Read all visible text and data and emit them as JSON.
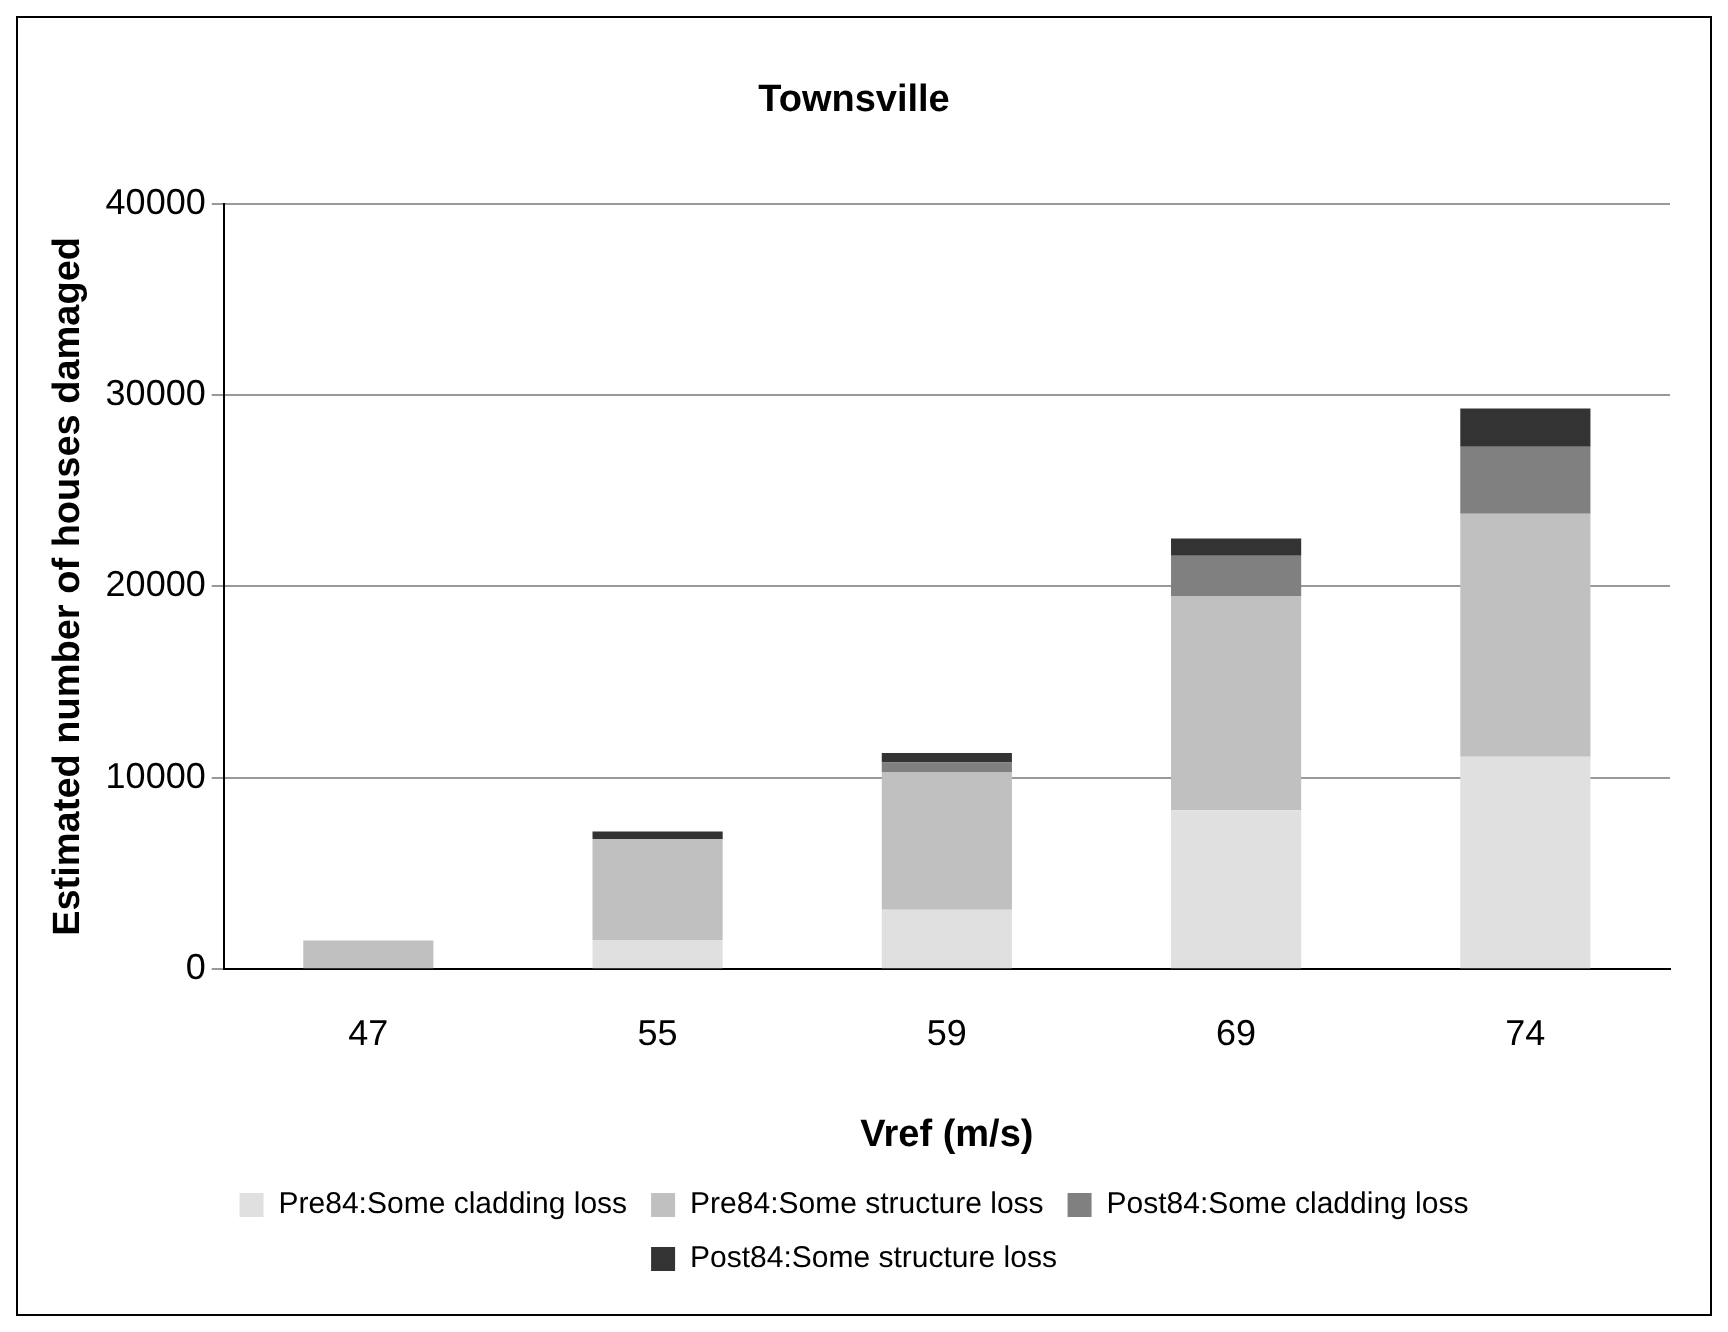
{
  "chart_data": {
    "type": "bar",
    "title": "Townsville",
    "xlabel": "Vref (m/s)",
    "ylabel": "Estimated number of houses damaged",
    "categories": [
      "47",
      "55",
      "59",
      "69",
      "74"
    ],
    "stacked": true,
    "series": [
      {
        "name": "Pre84:Some cladding loss",
        "color": "#e0e0e0",
        "values": [
          null,
          1500,
          3100,
          8300,
          11100
        ]
      },
      {
        "name": "Pre84:Some structure loss",
        "color": "#c0c0c0",
        "values": [
          1500,
          5300,
          7200,
          11200,
          12700
        ]
      },
      {
        "name": "Post84:Some cladding loss",
        "color": "#808080",
        "values": [
          0,
          0,
          500,
          2100,
          3500
        ]
      },
      {
        "name": "Post84:Some structure loss",
        "color": "#333333",
        "values": [
          0,
          400,
          500,
          900,
          2000
        ]
      }
    ],
    "ylim": [
      0,
      40000
    ],
    "yticks": [
      0,
      10000,
      20000,
      30000,
      40000
    ],
    "grid": "y",
    "legend": "bottom"
  }
}
